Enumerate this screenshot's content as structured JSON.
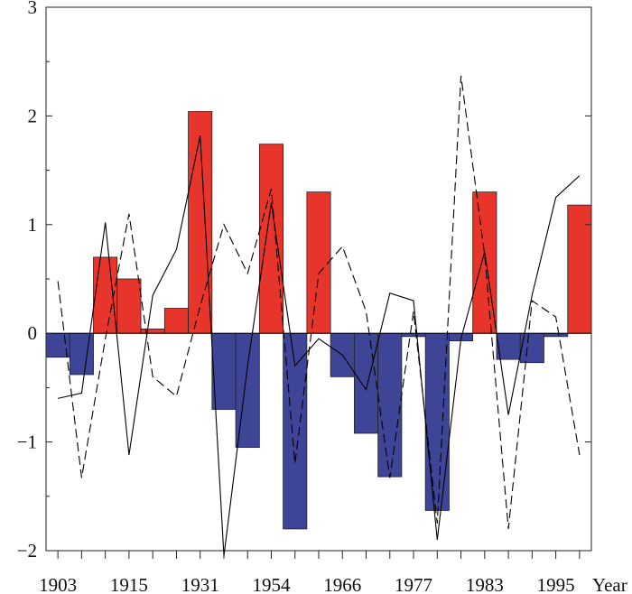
{
  "chart_data": {
    "type": "bar",
    "xlabel": "Year",
    "ylim": [
      -2,
      3
    ],
    "yticks": [
      "−2",
      "−1",
      "0",
      "1",
      "2",
      "3"
    ],
    "ytick_values": [
      -2,
      -1,
      0,
      1,
      2,
      3
    ],
    "x_tick_labels": [
      "1903",
      "1915",
      "1931",
      "1954",
      "1966",
      "1977",
      "1983",
      "1995"
    ],
    "x_tick_label_index": [
      0,
      3,
      6,
      9,
      12,
      15,
      18,
      21
    ],
    "n_categories": 23,
    "bars": [
      -0.22,
      -0.38,
      0.7,
      0.5,
      0.04,
      0.23,
      2.04,
      -0.7,
      -1.05,
      1.74,
      -1.8,
      1.3,
      -0.4,
      -0.92,
      -1.32,
      -0.03,
      -1.63,
      -0.07,
      1.3,
      -0.24,
      -0.27,
      -0.03,
      1.18
    ],
    "colors": {
      "positive": "#e8352b",
      "negative": "#3f4596",
      "line": "#000000"
    },
    "series": [
      {
        "style": "solid",
        "values": [
          -0.6,
          -0.55,
          1.02,
          -1.12,
          0.35,
          0.77,
          1.82,
          -2.05,
          -0.3,
          1.2,
          -0.3,
          -0.05,
          -0.2,
          -0.52,
          0.37,
          0.3,
          -1.9,
          -0.05,
          0.75,
          -0.75,
          0.35,
          1.25,
          1.45
        ]
      },
      {
        "style": "dashed",
        "values": [
          0.48,
          -1.33,
          -0.05,
          1.1,
          -0.4,
          -0.58,
          0.25,
          1.0,
          0.55,
          1.33,
          -1.2,
          0.55,
          0.8,
          0.2,
          -1.33,
          0.2,
          -1.75,
          2.37,
          0.72,
          -1.8,
          0.3,
          0.15,
          -1.12
        ]
      }
    ]
  }
}
